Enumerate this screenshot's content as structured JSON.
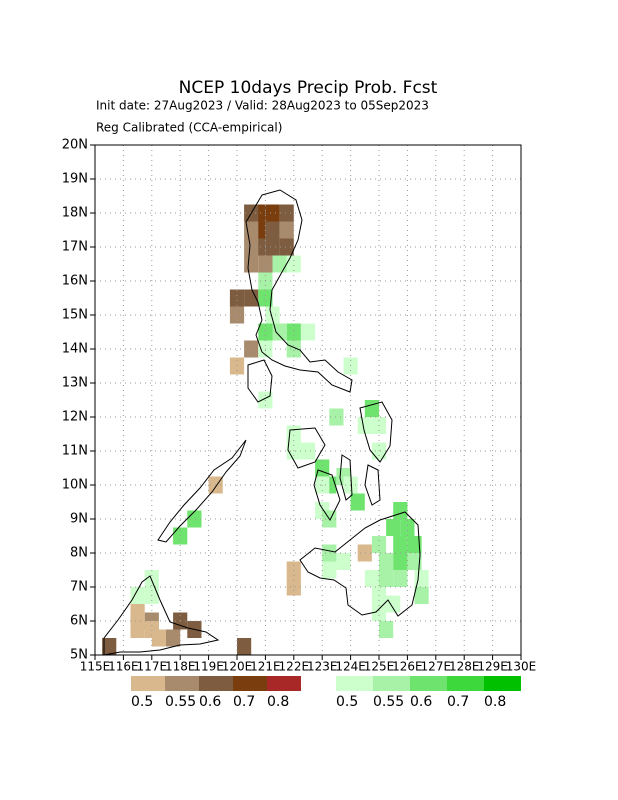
{
  "chart_data": {
    "type": "map",
    "title": "NCEP 10days Precip Prob. Fcst",
    "subtitles": [
      "Init date: 27Aug2023 / Valid: 28Aug2023 to 05Sep2023",
      "Reg Calibrated (CCA-empirical)"
    ],
    "xlim": [
      115,
      130
    ],
    "ylim": [
      5,
      20
    ],
    "xticks": [
      {
        "value": 115,
        "label": "115E"
      },
      {
        "value": 116,
        "label": "116E"
      },
      {
        "value": 117,
        "label": "117E"
      },
      {
        "value": 118,
        "label": "118E"
      },
      {
        "value": 119,
        "label": "119E"
      },
      {
        "value": 120,
        "label": "120E"
      },
      {
        "value": 121,
        "label": "121E"
      },
      {
        "value": 122,
        "label": "122E"
      },
      {
        "value": 123,
        "label": "123E"
      },
      {
        "value": 124,
        "label": "124E"
      },
      {
        "value": 125,
        "label": "125E"
      },
      {
        "value": 126,
        "label": "126E"
      },
      {
        "value": 127,
        "label": "127E"
      },
      {
        "value": 128,
        "label": "128E"
      },
      {
        "value": 129,
        "label": "129E"
      },
      {
        "value": 130,
        "label": "130E"
      }
    ],
    "yticks": [
      {
        "value": 5,
        "label": "5N"
      },
      {
        "value": 6,
        "label": "6N"
      },
      {
        "value": 7,
        "label": "7N"
      },
      {
        "value": 8,
        "label": "8N"
      },
      {
        "value": 9,
        "label": "9N"
      },
      {
        "value": 10,
        "label": "10N"
      },
      {
        "value": 11,
        "label": "11N"
      },
      {
        "value": 12,
        "label": "12N"
      },
      {
        "value": 13,
        "label": "13N"
      },
      {
        "value": 14,
        "label": "14N"
      },
      {
        "value": 15,
        "label": "15N"
      },
      {
        "value": 16,
        "label": "16N"
      },
      {
        "value": 17,
        "label": "17N"
      },
      {
        "value": 18,
        "label": "18N"
      },
      {
        "value": 19,
        "label": "19N"
      },
      {
        "value": 20,
        "label": "20N"
      }
    ],
    "grid": true,
    "dry_scale": {
      "levels": [
        0.5,
        0.55,
        0.6,
        0.7,
        0.8
      ],
      "colors": [
        "#d8b88c",
        "#a88a6c",
        "#7d5c40",
        "#7a3e0e",
        "#a82828"
      ]
    },
    "wet_scale": {
      "levels": [
        0.5,
        0.55,
        0.6,
        0.7,
        0.8
      ],
      "colors": [
        "#ccffcc",
        "#a8f2a8",
        "#6ee46e",
        "#3cd83c",
        "#00c000"
      ]
    },
    "dry_cells": [
      [
        120.5,
        17.75,
        0.7
      ],
      [
        121,
        17.75,
        0.7
      ],
      [
        120.5,
        17.25,
        0.7
      ],
      [
        120.25,
        17.75,
        0.6
      ],
      [
        121.5,
        17.75,
        0.6
      ],
      [
        121,
        17.25,
        0.6
      ],
      [
        121,
        16.75,
        0.6
      ],
      [
        121.5,
        16.75,
        0.6
      ],
      [
        120.5,
        16.75,
        0.6
      ],
      [
        119.75,
        15.25,
        0.6
      ],
      [
        120.25,
        15.25,
        0.6
      ],
      [
        118.25,
        5.5,
        0.6
      ],
      [
        120,
        5,
        0.6
      ],
      [
        115.25,
        5,
        0.6
      ],
      [
        117.75,
        5.75,
        0.6
      ],
      [
        120.25,
        17.25,
        0.55
      ],
      [
        121.5,
        17.25,
        0.55
      ],
      [
        120.25,
        16.75,
        0.55
      ],
      [
        120.25,
        16.25,
        0.55
      ],
      [
        120.75,
        16.25,
        0.55
      ],
      [
        119.75,
        14.75,
        0.55
      ],
      [
        120.25,
        13.75,
        0.55
      ],
      [
        117.5,
        5.25,
        0.55
      ],
      [
        116.75,
        5.75,
        0.55
      ],
      [
        119.75,
        13.25,
        0.5
      ],
      [
        119,
        9.75,
        0.5
      ],
      [
        124.25,
        7.75,
        0.5
      ],
      [
        121.75,
        6.75,
        0.5
      ],
      [
        121.75,
        7.25,
        0.5
      ],
      [
        116.25,
        6,
        0.5
      ],
      [
        116.75,
        5.5,
        0.5
      ],
      [
        116.25,
        5.5,
        0.5
      ],
      [
        117,
        5.25,
        0.5
      ]
    ],
    "wet_cells": [
      [
        121.25,
        16.25,
        0.55
      ],
      [
        121.75,
        16.25,
        0.5
      ],
      [
        120.75,
        15.75,
        0.55
      ],
      [
        120.75,
        15.25,
        0.6
      ],
      [
        121,
        14.75,
        0.5
      ],
      [
        121.75,
        14.25,
        0.6
      ],
      [
        120.75,
        14.25,
        0.6
      ],
      [
        121.25,
        14.25,
        0.55
      ],
      [
        122.25,
        14.25,
        0.5
      ],
      [
        121.75,
        13.75,
        0.55
      ],
      [
        120.75,
        13.75,
        0.5
      ],
      [
        123.75,
        13.25,
        0.5
      ],
      [
        120.75,
        12.25,
        0.5
      ],
      [
        123.25,
        11.75,
        0.55
      ],
      [
        124.5,
        12,
        0.6
      ],
      [
        124.25,
        11.5,
        0.5
      ],
      [
        124.75,
        11.5,
        0.5
      ],
      [
        121.75,
        11.25,
        0.5
      ],
      [
        121.75,
        10.75,
        0.5
      ],
      [
        122.25,
        10.75,
        0.5
      ],
      [
        124.75,
        10.75,
        0.5
      ],
      [
        122.75,
        10.25,
        0.6
      ],
      [
        123,
        9.75,
        0.6
      ],
      [
        123.5,
        10,
        0.55
      ],
      [
        122.75,
        9.75,
        0.5
      ],
      [
        123.75,
        9.75,
        0.5
      ],
      [
        124,
        9.25,
        0.6
      ],
      [
        122.75,
        9,
        0.5
      ],
      [
        123,
        8.75,
        0.55
      ],
      [
        118.25,
        8.75,
        0.6
      ],
      [
        117.75,
        8.25,
        0.6
      ],
      [
        116.75,
        7,
        0.5
      ],
      [
        116.75,
        6.5,
        0.5
      ],
      [
        116.25,
        6.5,
        0.5
      ],
      [
        125.5,
        9,
        0.6
      ],
      [
        125.25,
        8.5,
        0.6
      ],
      [
        125.75,
        8.5,
        0.6
      ],
      [
        125.5,
        8,
        0.6
      ],
      [
        126,
        8,
        0.6
      ],
      [
        124.75,
        8,
        0.55
      ],
      [
        125,
        7.5,
        0.55
      ],
      [
        125.5,
        7.5,
        0.6
      ],
      [
        126,
        7.5,
        0.55
      ],
      [
        123,
        7.75,
        0.55
      ],
      [
        123.5,
        7.5,
        0.5
      ],
      [
        123,
        7.25,
        0.5
      ],
      [
        124.5,
        7,
        0.5
      ],
      [
        125,
        7,
        0.55
      ],
      [
        125.5,
        7,
        0.55
      ],
      [
        126.25,
        7,
        0.5
      ],
      [
        126.25,
        6.5,
        0.55
      ],
      [
        124.75,
        6.5,
        0.5
      ],
      [
        125.25,
        6.25,
        0.5
      ],
      [
        124.75,
        6,
        0.5
      ],
      [
        125,
        5.5,
        0.55
      ]
    ]
  }
}
